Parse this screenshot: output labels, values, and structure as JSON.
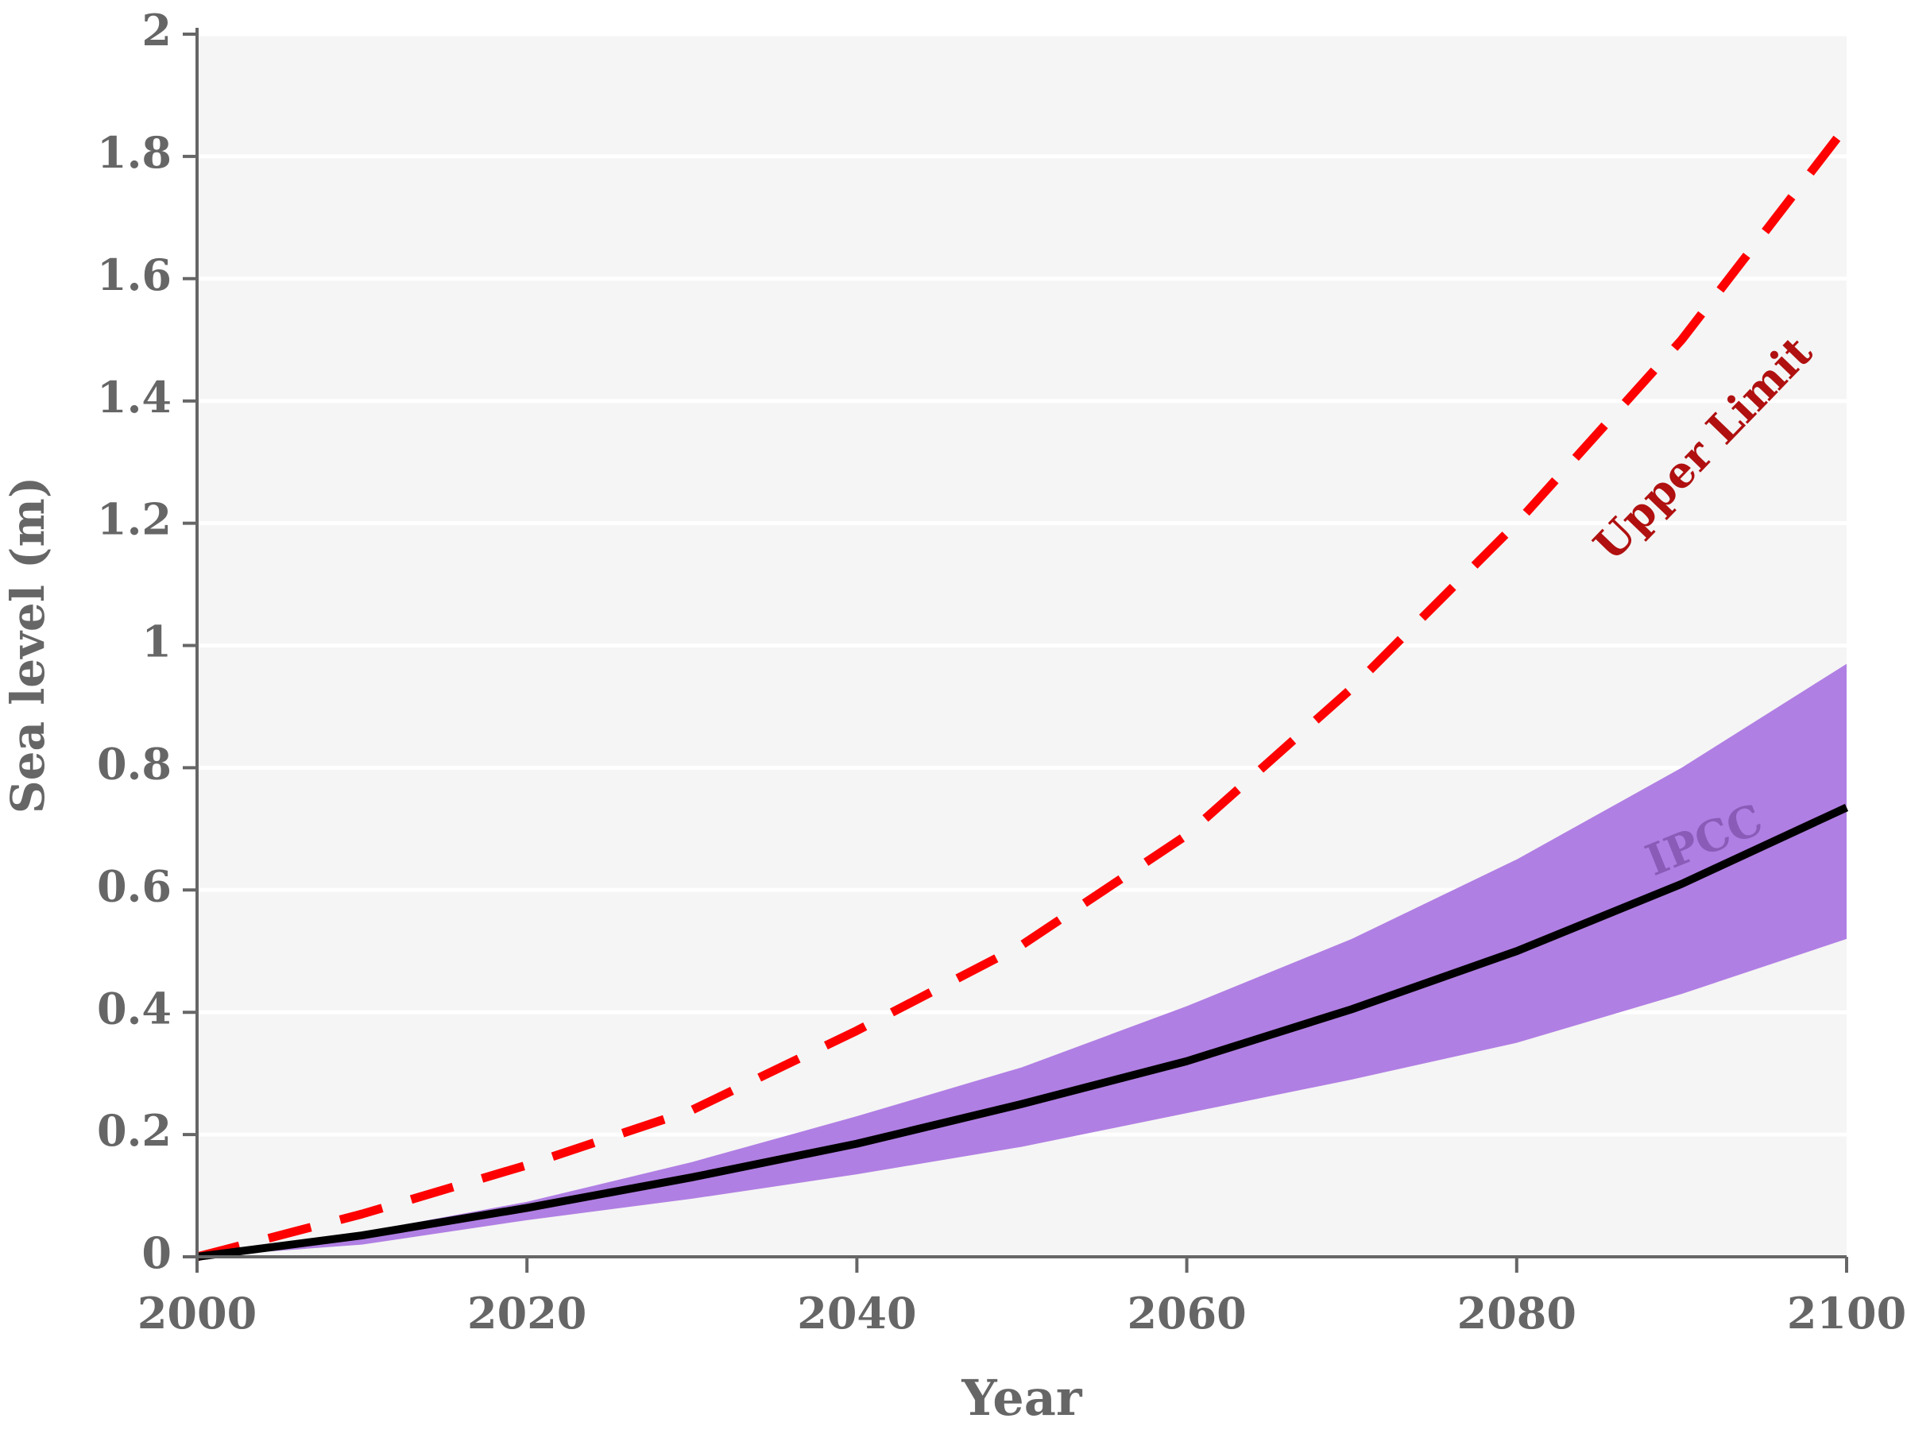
{
  "chart_data": {
    "type": "line",
    "x_label": "Year",
    "y_label": "Sea level (m)",
    "x": [
      2000,
      2010,
      2020,
      2030,
      2040,
      2050,
      2060,
      2070,
      2080,
      2090,
      2100
    ],
    "band": {
      "name": "IPCC",
      "color": "#b07fe3",
      "upper": [
        0,
        0.04,
        0.09,
        0.155,
        0.23,
        0.31,
        0.41,
        0.52,
        0.65,
        0.8,
        0.97
      ],
      "lower": [
        0,
        0.02,
        0.06,
        0.095,
        0.135,
        0.18,
        0.235,
        0.29,
        0.35,
        0.43,
        0.52
      ]
    },
    "series": [
      {
        "name": "Upper Limit",
        "color": "#ff0000",
        "dashed": true,
        "values": [
          0,
          0.07,
          0.15,
          0.24,
          0.37,
          0.51,
          0.69,
          0.93,
          1.2,
          1.5,
          1.85
        ]
      },
      {
        "color": "#000000",
        "dashed": false,
        "values": [
          0,
          0.035,
          0.08,
          0.13,
          0.185,
          0.25,
          0.32,
          0.405,
          0.5,
          0.61,
          0.735
        ]
      }
    ],
    "xlim": [
      2000,
      2100
    ],
    "xticks": [
      2000,
      2020,
      2040,
      2060,
      2080,
      2100
    ],
    "ylim": [
      0,
      2
    ],
    "yticks": [
      0,
      0.2,
      0.4,
      0.6,
      0.8,
      1,
      1.2,
      1.4,
      1.6,
      1.8,
      2
    ],
    "grid": true
  }
}
